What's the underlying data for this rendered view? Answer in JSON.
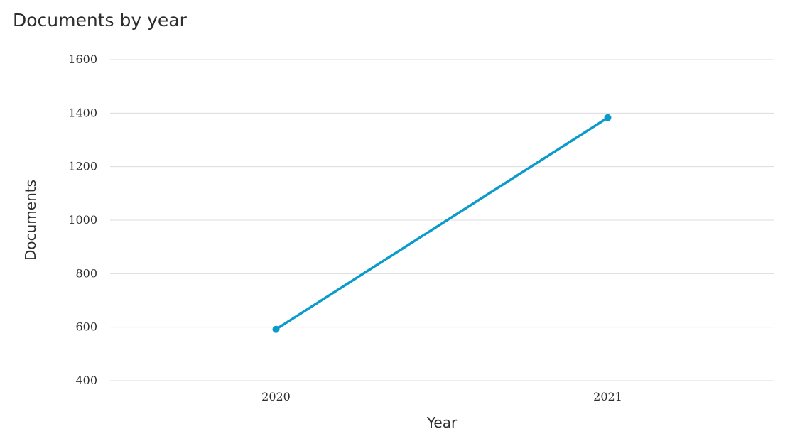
{
  "chart_data": {
    "type": "line",
    "title": "Documents by year",
    "xlabel": "Year",
    "ylabel": "Documents",
    "categories": [
      "2020",
      "2021"
    ],
    "series": [
      {
        "values": [
          592,
          1383
        ]
      }
    ],
    "ylim": [
      400,
      1600
    ],
    "yticks": [
      400,
      600,
      800,
      1000,
      1200,
      1400,
      1600
    ],
    "grid": true,
    "color": "#0b9bcb"
  }
}
